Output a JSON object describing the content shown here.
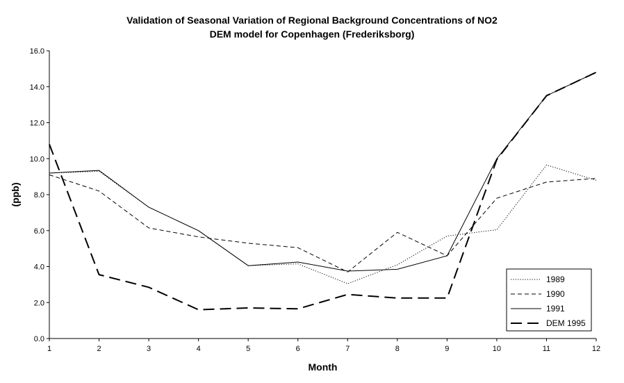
{
  "chart_data": {
    "type": "line",
    "title": "Validation of Seasonal Variation of Regional Background Concentrations of NO2",
    "subtitle": "DEM model for Copenhagen (Frederiksborg)",
    "xlabel": "Month",
    "ylabel": "(ppb)",
    "x": [
      1,
      2,
      3,
      4,
      5,
      6,
      7,
      8,
      9,
      10,
      11,
      12
    ],
    "xlim": [
      1,
      12
    ],
    "ylim": [
      0,
      16
    ],
    "yticks": [
      "0.0",
      "2.0",
      "4.0",
      "6.0",
      "8.0",
      "10.0",
      "12.0",
      "14.0",
      "16.0"
    ],
    "xticks": [
      "1",
      "2",
      "3",
      "4",
      "5",
      "6",
      "7",
      "8",
      "9",
      "10",
      "11",
      "12"
    ],
    "grid": false,
    "legend_position": "bottom-right",
    "series": [
      {
        "name": "1989",
        "style": "dotted",
        "values": [
          9.2,
          9.3,
          7.3,
          6.0,
          4.05,
          4.15,
          3.05,
          4.1,
          5.7,
          6.05,
          9.65,
          8.8
        ]
      },
      {
        "name": "1990",
        "style": "dashed",
        "values": [
          9.1,
          8.2,
          6.15,
          5.65,
          5.3,
          5.05,
          3.7,
          5.9,
          4.6,
          7.8,
          8.7,
          8.9
        ]
      },
      {
        "name": "1991",
        "style": "solid",
        "values": [
          9.2,
          9.35,
          7.3,
          6.0,
          4.05,
          4.25,
          3.75,
          3.85,
          4.6,
          10.0,
          13.5,
          14.8
        ]
      },
      {
        "name": "DEM 1995",
        "style": "longdash",
        "values": [
          10.8,
          3.55,
          2.85,
          1.6,
          1.7,
          1.65,
          2.45,
          2.25,
          2.25,
          9.95,
          13.5,
          14.8
        ]
      }
    ]
  }
}
